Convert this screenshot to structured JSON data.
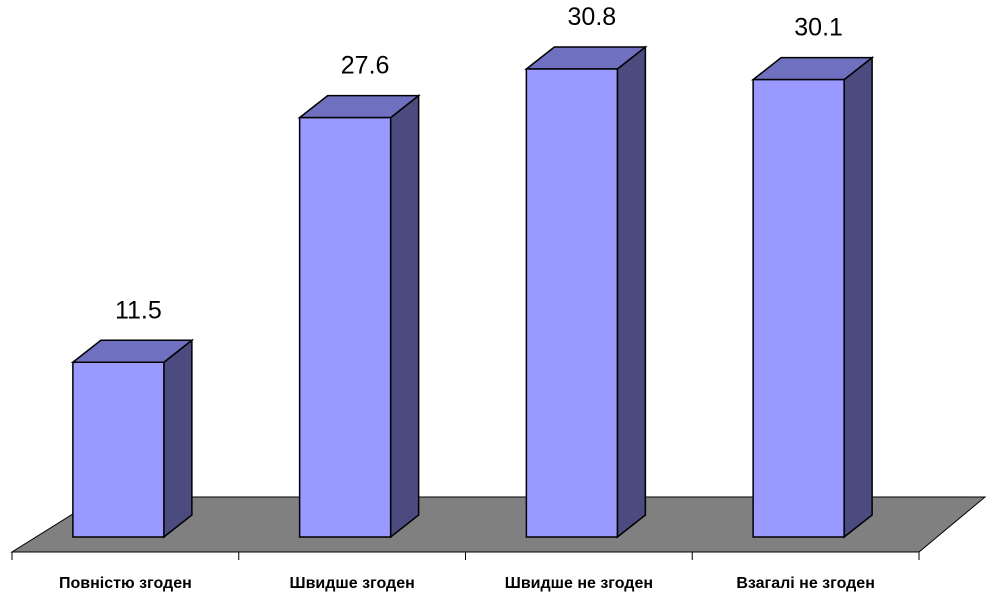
{
  "chart_data": {
    "type": "bar3d",
    "categories": [
      "Повністю згоден",
      "Швидше згоден",
      "Швидше не згоден",
      "Взагалі не згоден"
    ],
    "values": [
      11.5,
      27.6,
      30.8,
      30.1
    ],
    "color": "#9999ff"
  }
}
